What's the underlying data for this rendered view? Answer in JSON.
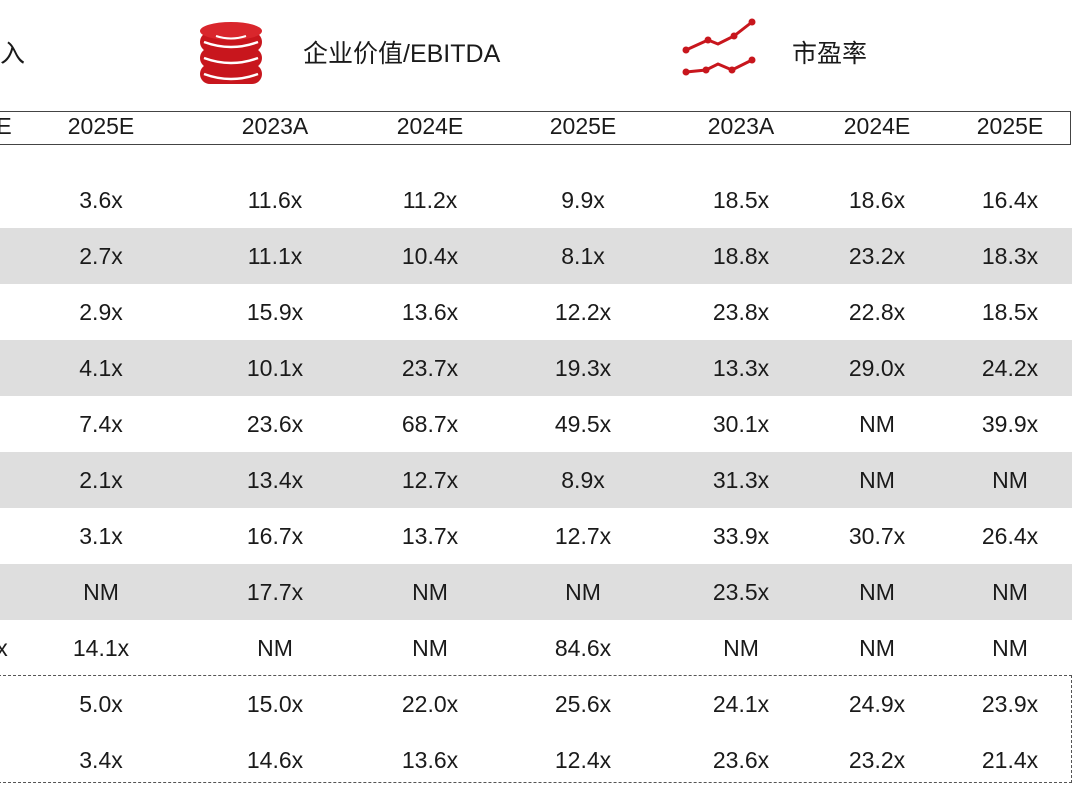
{
  "header": {
    "left_fragment": "入",
    "ev_ebitda_label": "企业价值/EBITDA",
    "pe_label": "市盈率",
    "icons": {
      "ev": "coin-stack-icon",
      "pe": "line-chart-icon"
    },
    "accent_color": "#c8161d"
  },
  "year_fragment": "E",
  "years": [
    "2025E",
    "2023A",
    "2024E",
    "2025E",
    "2023A",
    "2024E",
    "2025E"
  ],
  "rows": [
    {
      "fragment": "",
      "values": [
        "3.6x",
        "11.6x",
        "11.2x",
        "9.9x",
        "18.5x",
        "18.6x",
        "16.4x"
      ]
    },
    {
      "fragment": "",
      "values": [
        "2.7x",
        "11.1x",
        "10.4x",
        "8.1x",
        "18.8x",
        "23.2x",
        "18.3x"
      ]
    },
    {
      "fragment": "",
      "values": [
        "2.9x",
        "15.9x",
        "13.6x",
        "12.2x",
        "23.8x",
        "22.8x",
        "18.5x"
      ]
    },
    {
      "fragment": "",
      "values": [
        "4.1x",
        "10.1x",
        "23.7x",
        "19.3x",
        "13.3x",
        "29.0x",
        "24.2x"
      ]
    },
    {
      "fragment": "",
      "values": [
        "7.4x",
        "23.6x",
        "68.7x",
        "49.5x",
        "30.1x",
        "NM",
        "39.9x"
      ]
    },
    {
      "fragment": "",
      "values": [
        "2.1x",
        "13.4x",
        "12.7x",
        "8.9x",
        "31.3x",
        "NM",
        "NM"
      ]
    },
    {
      "fragment": "",
      "values": [
        "3.1x",
        "16.7x",
        "13.7x",
        "12.7x",
        "33.9x",
        "30.7x",
        "26.4x"
      ]
    },
    {
      "fragment": "",
      "values": [
        "NM",
        "17.7x",
        "NM",
        "NM",
        "23.5x",
        "NM",
        "NM"
      ]
    },
    {
      "fragment": "x",
      "values": [
        "14.1x",
        "NM",
        "NM",
        "84.6x",
        "NM",
        "NM",
        "NM"
      ]
    },
    {
      "fragment": "",
      "values": [
        "5.0x",
        "15.0x",
        "22.0x",
        "25.6x",
        "24.1x",
        "24.9x",
        "23.9x"
      ]
    },
    {
      "fragment": "",
      "values": [
        "3.4x",
        "14.6x",
        "13.6x",
        "12.4x",
        "23.6x",
        "23.2x",
        "21.4x"
      ]
    }
  ]
}
